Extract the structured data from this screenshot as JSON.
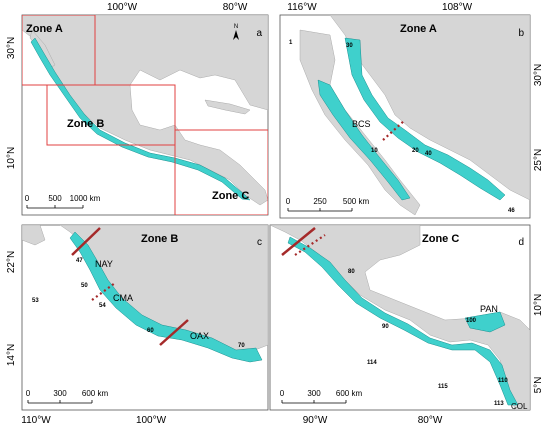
{
  "panels": [
    {
      "letter": "a",
      "zones": [
        "Zone A",
        "Zone B",
        "Zone C"
      ],
      "top_ticks": [
        "100°W",
        "80°W"
      ],
      "side_ticks": [
        "30°N",
        "10°N"
      ],
      "north": "N",
      "scale": [
        "0",
        "500",
        "1000 km"
      ]
    },
    {
      "letter": "b",
      "title": "Zone A",
      "top_ticks": [
        "116°W",
        "108°W"
      ],
      "side_ticks": [
        "30°N",
        "25°N"
      ],
      "scale": [
        "0",
        "250",
        "500 km"
      ],
      "labels": [
        "1",
        "30",
        "BCS",
        "10",
        "20",
        "40",
        "46"
      ]
    },
    {
      "letter": "c",
      "title": "Zone B",
      "bottom_ticks": [
        "110°W",
        "100°W"
      ],
      "side_ticks": [
        "22°N",
        "14°N"
      ],
      "scale": [
        "0",
        "300",
        "600 km"
      ],
      "labels": [
        "47",
        "NAY",
        "50",
        "CMA",
        "54",
        "53",
        "60",
        "OAX",
        "70"
      ]
    },
    {
      "letter": "d",
      "title": "Zone C",
      "bottom_ticks": [
        "90°W",
        "80°W"
      ],
      "side_ticks": [
        "10°N",
        "5°N"
      ],
      "scale": [
        "0",
        "300",
        "600 km"
      ],
      "labels": [
        "80",
        "90",
        "100",
        "PAN",
        "114",
        "115",
        "110",
        "113",
        "COL"
      ]
    }
  ]
}
